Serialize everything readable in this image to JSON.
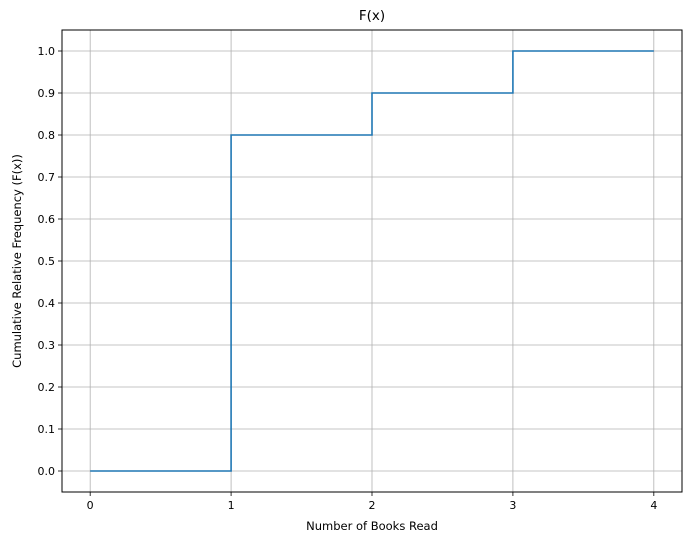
{
  "chart_data": {
    "type": "line",
    "step": "post",
    "title": "F(x)",
    "xlabel": "Number of Books Read",
    "ylabel": "Cumulative Relative Frequency (F(x))",
    "xlim": [
      -0.2,
      4.2
    ],
    "ylim": [
      -0.05,
      1.05
    ],
    "x_ticks": [
      0,
      1,
      2,
      3,
      4
    ],
    "x_tick_labels": [
      "0",
      "1",
      "2",
      "3",
      "4"
    ],
    "y_ticks": [
      0.0,
      0.1,
      0.2,
      0.3,
      0.4,
      0.5,
      0.6,
      0.7,
      0.8,
      0.9,
      1.0
    ],
    "y_tick_labels": [
      "0.0",
      "0.1",
      "0.2",
      "0.3",
      "0.4",
      "0.5",
      "0.6",
      "0.7",
      "0.8",
      "0.9",
      "1.0"
    ],
    "grid": true,
    "series": [
      {
        "x": [
          0,
          1,
          2,
          3,
          4
        ],
        "y": [
          0.0,
          0.8,
          0.9,
          1.0,
          1.0
        ],
        "color": "#1f77b4"
      }
    ]
  }
}
